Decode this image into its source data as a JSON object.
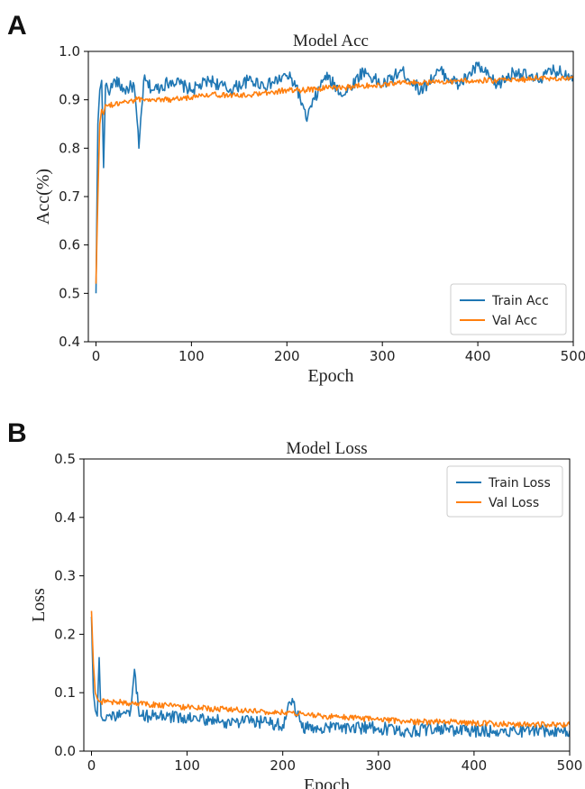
{
  "panels": [
    {
      "letter": "A"
    },
    {
      "letter": "B"
    }
  ],
  "colors": {
    "train": "#1f77b4",
    "val": "#ff7f0e",
    "axis": "#000000"
  },
  "chart_data": [
    {
      "type": "line",
      "title": "Model Acc",
      "xlabel": "Epoch",
      "ylabel": "Acc(%)",
      "xlim": [
        -8,
        500
      ],
      "ylim": [
        0.4,
        1.0
      ],
      "xticks": [
        0,
        100,
        200,
        300,
        400,
        500
      ],
      "yticks": [
        0.4,
        0.5,
        0.6,
        0.7,
        0.8,
        0.9,
        1.0
      ],
      "ytick_labels": [
        "0.4",
        "0.5",
        "0.6",
        "0.7",
        "0.8",
        "0.9",
        "1.0"
      ],
      "legend_position": "bottom-right",
      "grid": false,
      "series": [
        {
          "name": "Train Acc",
          "color": "#1f77b4",
          "x": [
            0,
            2,
            4,
            6,
            8,
            10,
            15,
            20,
            30,
            40,
            45,
            50,
            60,
            80,
            100,
            120,
            140,
            160,
            180,
            200,
            210,
            220,
            240,
            260,
            280,
            300,
            320,
            340,
            360,
            380,
            400,
            420,
            440,
            460,
            480,
            500
          ],
          "y": [
            0.5,
            0.85,
            0.92,
            0.94,
            0.76,
            0.93,
            0.92,
            0.94,
            0.92,
            0.93,
            0.8,
            0.94,
            0.92,
            0.94,
            0.92,
            0.94,
            0.92,
            0.94,
            0.93,
            0.95,
            0.93,
            0.86,
            0.95,
            0.91,
            0.96,
            0.93,
            0.96,
            0.92,
            0.96,
            0.93,
            0.97,
            0.93,
            0.96,
            0.94,
            0.96,
            0.95
          ]
        },
        {
          "name": "Val Acc",
          "color": "#ff7f0e",
          "x": [
            0,
            2,
            4,
            6,
            8,
            10,
            20,
            40,
            60,
            80,
            100,
            120,
            140,
            160,
            180,
            200,
            220,
            240,
            260,
            280,
            300,
            320,
            340,
            360,
            380,
            400,
            420,
            440,
            460,
            480,
            500
          ],
          "y": [
            0.52,
            0.7,
            0.85,
            0.88,
            0.87,
            0.89,
            0.89,
            0.9,
            0.9,
            0.9,
            0.905,
            0.91,
            0.91,
            0.91,
            0.915,
            0.92,
            0.92,
            0.925,
            0.925,
            0.93,
            0.93,
            0.935,
            0.935,
            0.935,
            0.94,
            0.94,
            0.94,
            0.94,
            0.945,
            0.945,
            0.945
          ]
        }
      ]
    },
    {
      "type": "line",
      "title": "Model Loss",
      "xlabel": "Epoch",
      "ylabel": "Loss",
      "xlim": [
        -8,
        500
      ],
      "ylim": [
        0.0,
        0.5
      ],
      "xticks": [
        0,
        100,
        200,
        300,
        400,
        500
      ],
      "yticks": [
        0.0,
        0.1,
        0.2,
        0.3,
        0.4,
        0.5
      ],
      "ytick_labels": [
        "0.0",
        "0.1",
        "0.2",
        "0.3",
        "0.4",
        "0.5"
      ],
      "legend_position": "top-right",
      "grid": false,
      "series": [
        {
          "name": "Train Loss",
          "color": "#1f77b4",
          "x": [
            0,
            2,
            4,
            6,
            8,
            10,
            20,
            40,
            45,
            50,
            60,
            80,
            100,
            120,
            140,
            160,
            180,
            200,
            210,
            220,
            240,
            260,
            280,
            300,
            320,
            340,
            360,
            380,
            400,
            420,
            440,
            460,
            480,
            500
          ],
          "y": [
            0.23,
            0.1,
            0.07,
            0.06,
            0.16,
            0.06,
            0.06,
            0.06,
            0.14,
            0.06,
            0.06,
            0.06,
            0.055,
            0.055,
            0.05,
            0.05,
            0.05,
            0.045,
            0.09,
            0.04,
            0.04,
            0.04,
            0.04,
            0.04,
            0.035,
            0.035,
            0.04,
            0.035,
            0.035,
            0.035,
            0.035,
            0.035,
            0.035,
            0.035
          ]
        },
        {
          "name": "Val Loss",
          "color": "#ff7f0e",
          "x": [
            0,
            2,
            4,
            6,
            8,
            10,
            20,
            40,
            60,
            80,
            100,
            120,
            140,
            160,
            180,
            200,
            220,
            240,
            260,
            280,
            300,
            320,
            340,
            360,
            380,
            400,
            420,
            440,
            460,
            480,
            500
          ],
          "y": [
            0.24,
            0.15,
            0.1,
            0.09,
            0.085,
            0.085,
            0.085,
            0.082,
            0.08,
            0.078,
            0.075,
            0.073,
            0.072,
            0.07,
            0.068,
            0.066,
            0.064,
            0.06,
            0.058,
            0.056,
            0.054,
            0.052,
            0.05,
            0.05,
            0.05,
            0.048,
            0.047,
            0.046,
            0.046,
            0.045,
            0.045
          ]
        }
      ]
    }
  ]
}
